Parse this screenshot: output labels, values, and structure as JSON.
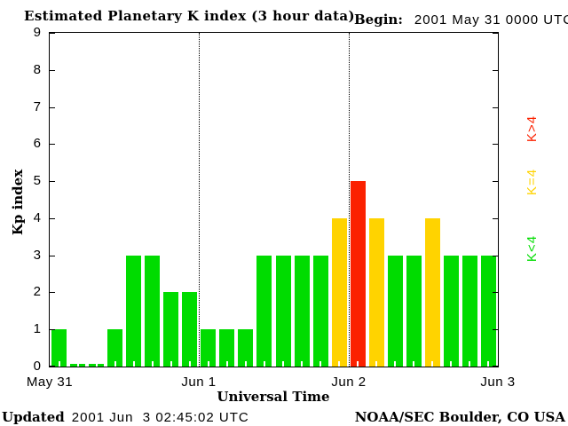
{
  "header": {
    "title": "Estimated Planetary K index (3 hour data)",
    "begin_label": "Begin:",
    "begin_value": "2001 May 31 0000 UTC"
  },
  "footer": {
    "updated_label": "Updated",
    "updated_value": "2001 Jun  3 02:45:02 UTC",
    "credit": "NOAA/SEC Boulder, CO USA"
  },
  "chart_data": {
    "type": "bar",
    "title": "Estimated Planetary K index (3 hour data)",
    "xlabel": "Universal Time",
    "ylabel": "Kp index",
    "ylim": [
      0,
      9
    ],
    "yticks": [
      0,
      1,
      2,
      3,
      4,
      5,
      6,
      7,
      8,
      9
    ],
    "hours_per_bar": 3,
    "x_day_labels": [
      "May 31",
      "Jun 1",
      "Jun 2",
      "Jun 3"
    ],
    "day_separator_lines": [
      "Jun 1",
      "Jun 2"
    ],
    "series": [
      {
        "day": "May 31",
        "values": [
          1,
          0,
          0,
          1,
          3,
          3,
          2,
          2
        ]
      },
      {
        "day": "Jun 1",
        "values": [
          1,
          1,
          1,
          3,
          3,
          3,
          3,
          4
        ]
      },
      {
        "day": "Jun 2",
        "values": [
          5,
          4,
          3,
          3,
          4,
          3,
          3,
          3
        ]
      }
    ],
    "colors": {
      "k_lt_4": "#00DC00",
      "k_eq_4": "#FFD300",
      "k_gt_4": "#FB2100",
      "axis": "#000000",
      "background": "#FFFFFF"
    },
    "legend": [
      {
        "label": "K>4",
        "key": "k_gt_4"
      },
      {
        "label": "K=4",
        "key": "k_eq_4"
      },
      {
        "label": "K<4",
        "key": "k_lt_4"
      }
    ],
    "legend_position": "right",
    "grid": "dotted vertical lines at day boundaries only"
  }
}
